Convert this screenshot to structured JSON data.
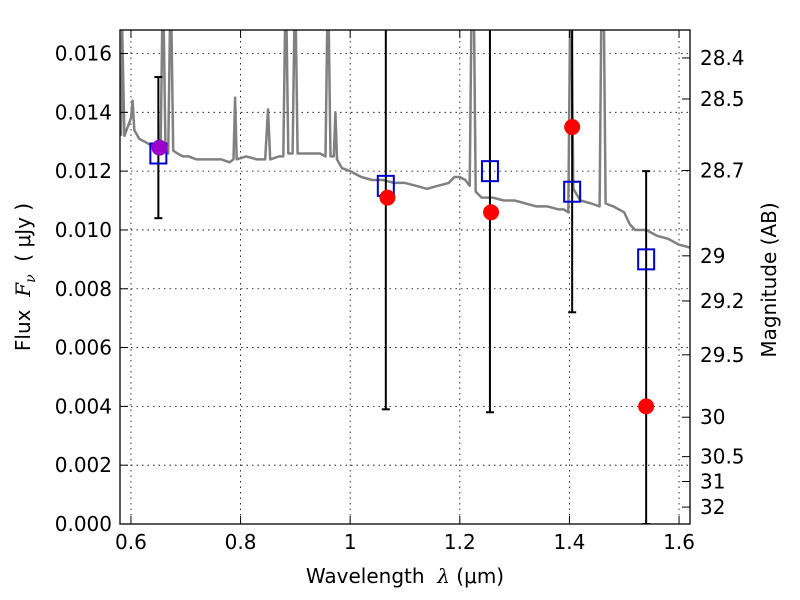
{
  "chart_data": {
    "type": "scatter",
    "xlabel": {
      "prefix": "Wavelength  ",
      "lambda": "λ",
      "unit": " (μm)"
    },
    "ylabel": {
      "prefix": "Flux  ",
      "F": "F",
      "sub": "ν",
      "unit": "  ( μJy )"
    },
    "ylabel_right": "Magnitude (AB)",
    "xlim": [
      0.58,
      1.62
    ],
    "ylim": [
      0.0,
      0.0168
    ],
    "x_ticks": [
      0.6,
      0.8,
      1.0,
      1.2,
      1.4,
      1.6
    ],
    "x_tick_labels": [
      "0.6",
      "0.8",
      "1",
      "1.2",
      "1.4",
      "1.6"
    ],
    "y_ticks": [
      0.0,
      0.002,
      0.004,
      0.006,
      0.008,
      0.01,
      0.012,
      0.014,
      0.016
    ],
    "y_tick_labels": [
      "0.000",
      "0.002",
      "0.004",
      "0.006",
      "0.008",
      "0.010",
      "0.012",
      "0.014",
      "0.016"
    ],
    "right_ticks": [
      {
        "mag": 28.4,
        "label": "28.4"
      },
      {
        "mag": 28.5,
        "label": "28.5"
      },
      {
        "mag": 28.7,
        "label": "28.7"
      },
      {
        "mag": 29.0,
        "label": "29"
      },
      {
        "mag": 29.2,
        "label": "29.2"
      },
      {
        "mag": 29.5,
        "label": "29.5"
      },
      {
        "mag": 30.0,
        "label": "30"
      },
      {
        "mag": 30.5,
        "label": "30.5"
      },
      {
        "mag": 31.0,
        "label": "31"
      },
      {
        "mag": 32.0,
        "label": "32"
      }
    ],
    "grid": true,
    "series": [
      {
        "kind": "line",
        "color": "#808080",
        "points": [
          [
            0.582,
            0.0132
          ],
          [
            0.584,
            0.0168
          ],
          [
            0.588,
            0.0132
          ],
          [
            0.592,
            0.0134
          ],
          [
            0.6,
            0.0138
          ],
          [
            0.603,
            0.0144
          ],
          [
            0.606,
            0.0134
          ],
          [
            0.615,
            0.0131
          ],
          [
            0.625,
            0.013
          ],
          [
            0.635,
            0.0129
          ],
          [
            0.645,
            0.0128
          ],
          [
            0.65,
            0.0128
          ],
          [
            0.654,
            0.0127
          ],
          [
            0.657,
            0.0168
          ],
          [
            0.66,
            0.0168
          ],
          [
            0.663,
            0.0127
          ],
          [
            0.668,
            0.0126
          ],
          [
            0.671,
            0.0168
          ],
          [
            0.674,
            0.0168
          ],
          [
            0.677,
            0.0127
          ],
          [
            0.685,
            0.0126
          ],
          [
            0.695,
            0.0125
          ],
          [
            0.705,
            0.0125
          ],
          [
            0.72,
            0.0124
          ],
          [
            0.735,
            0.0124
          ],
          [
            0.75,
            0.0124
          ],
          [
            0.765,
            0.0124
          ],
          [
            0.78,
            0.0123
          ],
          [
            0.787,
            0.0124
          ],
          [
            0.79,
            0.0145
          ],
          [
            0.793,
            0.0124
          ],
          [
            0.81,
            0.0125
          ],
          [
            0.83,
            0.0124
          ],
          [
            0.845,
            0.0124
          ],
          [
            0.85,
            0.0141
          ],
          [
            0.854,
            0.0124
          ],
          [
            0.87,
            0.0125
          ],
          [
            0.878,
            0.0125
          ],
          [
            0.881,
            0.0168
          ],
          [
            0.884,
            0.0168
          ],
          [
            0.887,
            0.0126
          ],
          [
            0.895,
            0.0126
          ],
          [
            0.898,
            0.0168
          ],
          [
            0.901,
            0.0168
          ],
          [
            0.904,
            0.0126
          ],
          [
            0.915,
            0.0126
          ],
          [
            0.93,
            0.0126
          ],
          [
            0.945,
            0.0126
          ],
          [
            0.955,
            0.0125
          ],
          [
            0.958,
            0.0168
          ],
          [
            0.961,
            0.0168
          ],
          [
            0.964,
            0.0125
          ],
          [
            0.97,
            0.0125
          ],
          [
            0.973,
            0.014
          ],
          [
            0.976,
            0.0124
          ],
          [
            0.985,
            0.0121
          ],
          [
            1.0,
            0.012
          ],
          [
            1.02,
            0.0118
          ],
          [
            1.04,
            0.0117
          ],
          [
            1.06,
            0.0117
          ],
          [
            1.08,
            0.0116
          ],
          [
            1.1,
            0.0116
          ],
          [
            1.12,
            0.0115
          ],
          [
            1.14,
            0.0114
          ],
          [
            1.16,
            0.0115
          ],
          [
            1.18,
            0.0116
          ],
          [
            1.19,
            0.0118
          ],
          [
            1.2,
            0.0118
          ],
          [
            1.21,
            0.0117
          ],
          [
            1.218,
            0.0115
          ],
          [
            1.221,
            0.0168
          ],
          [
            1.226,
            0.0168
          ],
          [
            1.229,
            0.0113
          ],
          [
            1.24,
            0.0111
          ],
          [
            1.26,
            0.0111
          ],
          [
            1.28,
            0.011
          ],
          [
            1.3,
            0.011
          ],
          [
            1.32,
            0.0109
          ],
          [
            1.34,
            0.0108
          ],
          [
            1.36,
            0.0108
          ],
          [
            1.38,
            0.0107
          ],
          [
            1.39,
            0.0107
          ],
          [
            1.398,
            0.0106
          ],
          [
            1.401,
            0.0168
          ],
          [
            1.404,
            0.0168
          ],
          [
            1.407,
            0.0114
          ],
          [
            1.42,
            0.011
          ],
          [
            1.44,
            0.0109
          ],
          [
            1.455,
            0.0108
          ],
          [
            1.458,
            0.0168
          ],
          [
            1.463,
            0.0168
          ],
          [
            1.466,
            0.0109
          ],
          [
            1.48,
            0.0108
          ],
          [
            1.5,
            0.0106
          ],
          [
            1.51,
            0.0102
          ],
          [
            1.52,
            0.01
          ],
          [
            1.54,
            0.01
          ],
          [
            1.56,
            0.0098
          ],
          [
            1.58,
            0.0097
          ],
          [
            1.6,
            0.0095
          ],
          [
            1.62,
            0.0094
          ]
        ]
      },
      {
        "kind": "errorbar",
        "color": "#000000",
        "bars": [
          {
            "x": 0.65,
            "low": 0.0104,
            "high": 0.0152
          },
          {
            "x": 1.065,
            "low": 0.0039,
            "high": 0.0168
          },
          {
            "x": 1.255,
            "low": 0.0038,
            "high": 0.0168
          },
          {
            "x": 1.405,
            "low": 0.0072,
            "high": 0.0168
          },
          {
            "x": 1.54,
            "low": 0.0,
            "high": 0.012
          }
        ]
      },
      {
        "kind": "square",
        "color": "#0000cc",
        "points": [
          [
            0.65,
            0.0126
          ],
          [
            1.065,
            0.0115
          ],
          [
            1.255,
            0.012
          ],
          [
            1.405,
            0.0113
          ],
          [
            1.54,
            0.009
          ]
        ]
      },
      {
        "kind": "circle",
        "color": "#ff0000",
        "points": [
          [
            1.068,
            0.0111
          ],
          [
            1.257,
            0.0106
          ],
          [
            1.405,
            0.0135
          ],
          [
            1.54,
            0.004
          ]
        ]
      },
      {
        "kind": "circle",
        "color": "#9900cc",
        "points": [
          [
            0.652,
            0.0128
          ]
        ]
      }
    ]
  }
}
